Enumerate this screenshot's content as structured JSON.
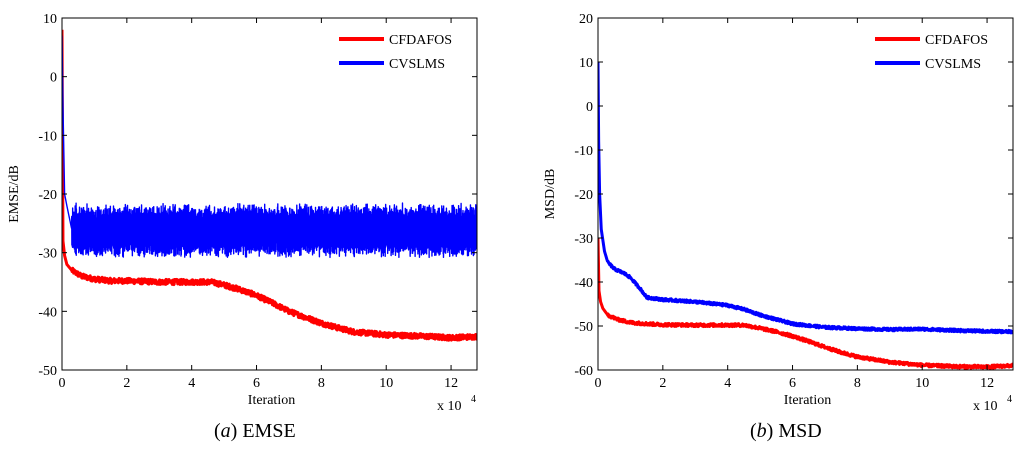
{
  "chart_data": [
    {
      "type": "line",
      "caption_letter": "a",
      "caption_text": "EMSE",
      "xlabel": "Iteration",
      "ylabel": "EMSE/dB",
      "x_multiplier": "x 10",
      "x_multiplier_exp": "4",
      "xlim": [
        0,
        12.8
      ],
      "ylim": [
        -50,
        10
      ],
      "xticks": [
        0,
        2,
        4,
        6,
        8,
        10,
        12
      ],
      "yticks": [
        10,
        0,
        -10,
        -20,
        -30,
        -40,
        -50
      ],
      "legend_position": "top-right",
      "series": [
        {
          "name": "CFDAFOS",
          "color": "#ff0000",
          "noise": 0.45,
          "x": [
            0,
            0.03,
            0.08,
            0.15,
            0.3,
            0.6,
            1.0,
            1.5,
            2.0,
            3.0,
            4.0,
            4.6,
            5.0,
            5.5,
            6.0,
            6.5,
            7.0,
            7.5,
            8.0,
            8.5,
            9.0,
            10.0,
            11.0,
            12.0,
            12.8
          ],
          "y": [
            8.0,
            -28.0,
            -30.5,
            -32.0,
            -33.0,
            -34.0,
            -34.5,
            -34.8,
            -34.8,
            -35.0,
            -35.0,
            -35.0,
            -35.5,
            -36.3,
            -37.3,
            -38.6,
            -40.0,
            -41.0,
            -42.0,
            -42.8,
            -43.5,
            -44.0,
            -44.2,
            -44.5,
            -44.3
          ]
        },
        {
          "name": "CVSLMS",
          "color": "#0000ff",
          "band": [
            -31.0,
            -21.5
          ],
          "x": [
            0,
            0.03,
            0.08,
            0.15,
            0.3,
            12.8
          ],
          "y": [
            7.0,
            -5.0,
            -20.0,
            -22.0,
            -26.0,
            -26.0
          ]
        }
      ]
    },
    {
      "type": "line",
      "caption_letter": "b",
      "caption_text": "MSD",
      "xlabel": "Iteration",
      "ylabel": "MSD/dB",
      "x_multiplier": "x 10",
      "x_multiplier_exp": "4",
      "xlim": [
        0,
        12.8
      ],
      "ylim": [
        -60,
        20
      ],
      "xticks": [
        0,
        2,
        4,
        6,
        8,
        10,
        12
      ],
      "yticks": [
        20,
        10,
        0,
        -10,
        -20,
        -30,
        -40,
        -50,
        -60
      ],
      "legend_position": "top-right",
      "series": [
        {
          "name": "CFDAFOS",
          "color": "#ff0000",
          "noise": 0.35,
          "x": [
            0,
            0.03,
            0.08,
            0.15,
            0.3,
            0.6,
            1.0,
            1.5,
            2.0,
            3.0,
            4.0,
            4.5,
            5.0,
            5.5,
            6.0,
            6.5,
            7.0,
            7.5,
            8.0,
            9.0,
            10.0,
            11.0,
            12.0,
            12.8
          ],
          "y": [
            -30.0,
            -42.0,
            -44.5,
            -46.0,
            -47.5,
            -48.5,
            -49.2,
            -49.5,
            -49.7,
            -49.8,
            -49.8,
            -49.8,
            -50.5,
            -51.3,
            -52.3,
            -53.5,
            -54.8,
            -56.0,
            -57.0,
            -58.2,
            -58.9,
            -59.2,
            -59.3,
            -59.0
          ]
        },
        {
          "name": "CVSLMS",
          "color": "#0000ff",
          "noise": 0.3,
          "x": [
            0,
            0.02,
            0.05,
            0.1,
            0.2,
            0.3,
            0.5,
            0.8,
            1.0,
            1.3,
            1.5,
            2.0,
            3.0,
            4.0,
            4.5,
            5.0,
            5.5,
            6.0,
            7.0,
            8.0,
            9.0,
            10.0,
            11.0,
            12.0,
            12.8
          ],
          "y": [
            10.0,
            -8.0,
            -20.0,
            -28.0,
            -33.0,
            -35.5,
            -37.0,
            -38.0,
            -39.0,
            -41.5,
            -43.5,
            -44.0,
            -44.5,
            -45.3,
            -46.2,
            -47.5,
            -48.5,
            -49.5,
            -50.3,
            -50.6,
            -50.8,
            -50.7,
            -51.0,
            -51.2,
            -51.3
          ]
        }
      ]
    }
  ]
}
